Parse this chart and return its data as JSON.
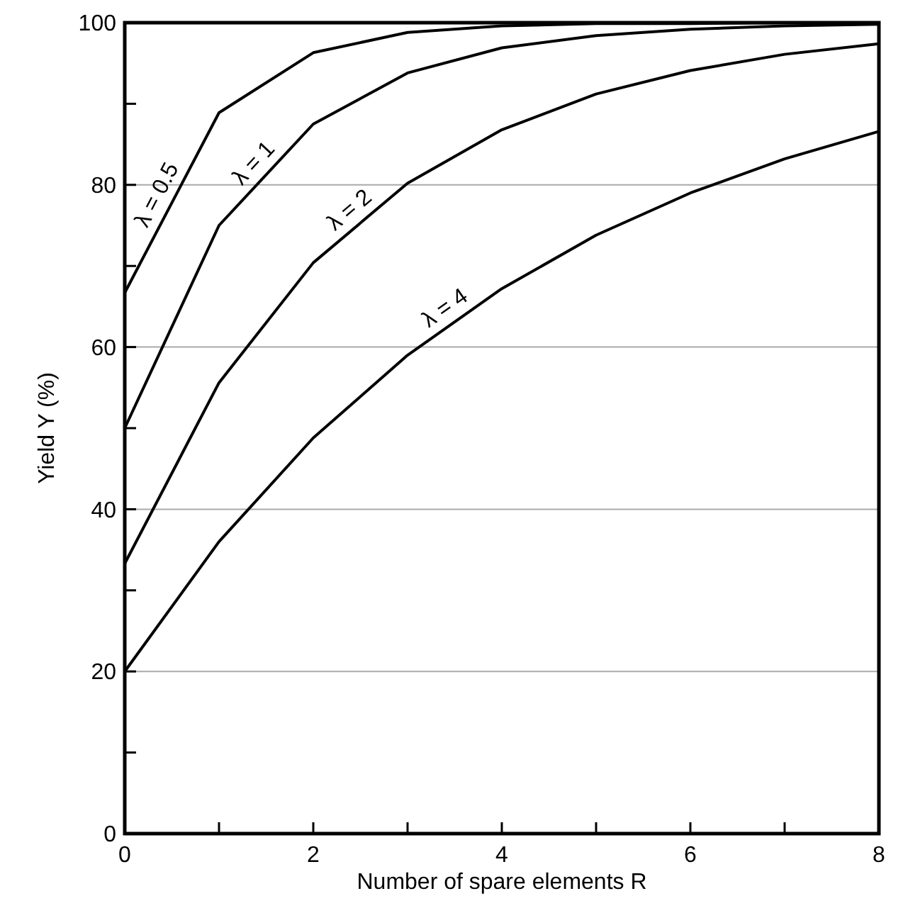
{
  "chart_data": {
    "type": "line",
    "xlabel": "Number of spare elements R",
    "ylabel": "Yield Y (%)",
    "x": [
      0,
      1,
      2,
      3,
      4,
      5,
      6,
      7,
      8
    ],
    "series": [
      {
        "name": "λ = 0.5",
        "color": "#000000",
        "values": [
          66.7,
          88.9,
          96.3,
          98.8,
          99.6,
          99.9,
          99.9,
          100,
          100
        ]
      },
      {
        "name": "λ = 1",
        "color": "#000000",
        "values": [
          50,
          75,
          87.5,
          93.8,
          96.9,
          98.4,
          99.2,
          99.6,
          99.8
        ]
      },
      {
        "name": "λ = 2",
        "color": "#000000",
        "values": [
          33.3,
          55.6,
          70.4,
          80.2,
          86.8,
          91.2,
          94.1,
          96.1,
          97.4
        ]
      },
      {
        "name": "λ = 4",
        "color": "#000000",
        "values": [
          20,
          36,
          48.8,
          59,
          67.2,
          73.8,
          79,
          83.2,
          86.6
        ]
      }
    ],
    "xlim": [
      0,
      8
    ],
    "xticks": [
      0,
      {
        "value": 1,
        "label": null
      },
      2,
      {
        "value": 3,
        "label": null
      },
      4,
      {
        "value": 5,
        "label": null
      },
      6,
      {
        "value": 7,
        "label": null
      },
      8
    ],
    "ylim": [
      0,
      100
    ],
    "yticks": [
      0,
      {
        "value": 10,
        "label": null
      },
      20,
      {
        "value": 30,
        "label": null
      },
      40,
      {
        "value": 50,
        "label": null
      },
      60,
      {
        "value": 70,
        "label": null
      },
      80,
      {
        "value": 90,
        "label": null
      },
      100
    ],
    "grid": "y",
    "marker": "none",
    "line_style": "solid"
  }
}
